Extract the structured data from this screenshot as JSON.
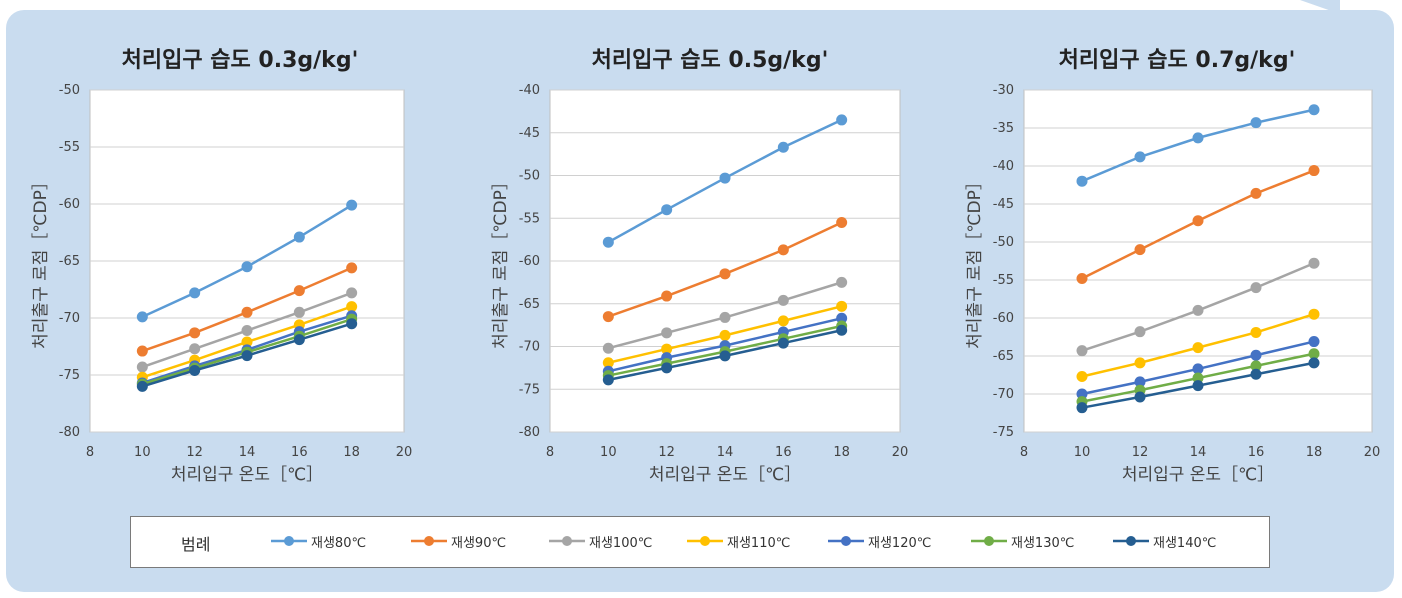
{
  "legend": {
    "title": "범례",
    "series": [
      {
        "name": "재생80℃",
        "color": "#5b9bd5"
      },
      {
        "name": "재생90℃",
        "color": "#ed7d31"
      },
      {
        "name": "재생100℃",
        "color": "#a5a5a5"
      },
      {
        "name": "재생110℃",
        "color": "#ffc000"
      },
      {
        "name": "재생120℃",
        "color": "#4472c4"
      },
      {
        "name": "재생130℃",
        "color": "#70ad47"
      },
      {
        "name": "재생140℃",
        "color": "#255e91"
      }
    ]
  },
  "chart_data": [
    {
      "type": "line",
      "title": "처리입구 습도   0.3g/kg'",
      "xlabel": "처리입구 온도［℃］",
      "ylabel": "처리출구 로점［℃DP］",
      "xlim": [
        8,
        20
      ],
      "xticks": [
        8,
        10,
        12,
        14,
        16,
        18,
        20
      ],
      "ylim": [
        -80,
        -50
      ],
      "yticks": [
        -50,
        -55,
        -60,
        -65,
        -70,
        -75,
        -80
      ],
      "grid": "horizontal",
      "x": [
        10,
        12,
        14,
        16,
        18
      ],
      "series": [
        {
          "name": "재생80℃",
          "values": [
            -69.9,
            -67.8,
            -65.5,
            -62.9,
            -60.1
          ]
        },
        {
          "name": "재생90℃",
          "values": [
            -72.9,
            -71.3,
            -69.5,
            -67.6,
            -65.6
          ]
        },
        {
          "name": "재생100℃",
          "values": [
            -74.3,
            -72.7,
            -71.1,
            -69.5,
            -67.8
          ]
        },
        {
          "name": "재생110℃",
          "values": [
            -75.2,
            -73.7,
            -72.1,
            -70.6,
            -69.0
          ]
        },
        {
          "name": "재생120℃",
          "values": [
            -75.7,
            -74.2,
            -72.8,
            -71.2,
            -69.8
          ]
        },
        {
          "name": "재생130℃",
          "values": [
            -75.8,
            -74.4,
            -73.0,
            -71.6,
            -70.1
          ]
        },
        {
          "name": "재생140℃",
          "values": [
            -76.0,
            -74.6,
            -73.3,
            -71.9,
            -70.5
          ]
        }
      ]
    },
    {
      "type": "line",
      "title": "처리입구 습도   0.5g/kg'",
      "xlabel": "처리입구 온도［℃］",
      "ylabel": "처리출구 로점［℃DP］",
      "xlim": [
        8,
        20
      ],
      "xticks": [
        8,
        10,
        12,
        14,
        16,
        18,
        20
      ],
      "ylim": [
        -80,
        -40
      ],
      "yticks": [
        -40,
        -45,
        -50,
        -55,
        -60,
        -65,
        -70,
        -75,
        -80
      ],
      "grid": "horizontal",
      "x": [
        10,
        12,
        14,
        16,
        18
      ],
      "series": [
        {
          "name": "재생80℃",
          "values": [
            -57.8,
            -54.0,
            -50.3,
            -46.7,
            -43.5
          ]
        },
        {
          "name": "재생90℃",
          "values": [
            -66.5,
            -64.1,
            -61.5,
            -58.7,
            -55.5
          ]
        },
        {
          "name": "재생100℃",
          "values": [
            -70.2,
            -68.4,
            -66.6,
            -64.6,
            -62.5
          ]
        },
        {
          "name": "재생110℃",
          "values": [
            -71.9,
            -70.3,
            -68.7,
            -67.0,
            -65.3
          ]
        },
        {
          "name": "재생120℃",
          "values": [
            -72.9,
            -71.3,
            -69.9,
            -68.3,
            -66.7
          ]
        },
        {
          "name": "재생130℃",
          "values": [
            -73.4,
            -72.0,
            -70.6,
            -69.1,
            -67.6
          ]
        },
        {
          "name": "재생140℃",
          "values": [
            -73.9,
            -72.5,
            -71.1,
            -69.6,
            -68.1
          ]
        }
      ]
    },
    {
      "type": "line",
      "title": "처리입구 습도   0.7g/kg'",
      "xlabel": "처리입구 온도［℃］",
      "ylabel": "처리출구 로점［℃DP］",
      "xlim": [
        8,
        20
      ],
      "xticks": [
        8,
        10,
        12,
        14,
        16,
        18,
        20
      ],
      "ylim": [
        -75,
        -30
      ],
      "yticks": [
        -30,
        -35,
        -40,
        -45,
        -50,
        -55,
        -60,
        -65,
        -70,
        -75
      ],
      "grid": "horizontal",
      "x": [
        10,
        12,
        14,
        16,
        18
      ],
      "series": [
        {
          "name": "재생80℃",
          "values": [
            -42.0,
            -38.8,
            -36.3,
            -34.3,
            -32.6
          ]
        },
        {
          "name": "재생90℃",
          "values": [
            -54.8,
            -51.0,
            -47.2,
            -43.6,
            -40.6
          ]
        },
        {
          "name": "재생100℃",
          "values": [
            -64.3,
            -61.8,
            -59.0,
            -56.0,
            -52.8
          ]
        },
        {
          "name": "재생110℃",
          "values": [
            -67.7,
            -65.9,
            -63.9,
            -61.9,
            -59.5
          ]
        },
        {
          "name": "재생120℃",
          "values": [
            -70.0,
            -68.4,
            -66.7,
            -64.9,
            -63.1
          ]
        },
        {
          "name": "재생130℃",
          "values": [
            -71.0,
            -69.5,
            -67.9,
            -66.3,
            -64.7
          ]
        },
        {
          "name": "재생140℃",
          "values": [
            -71.8,
            -70.4,
            -68.9,
            -67.4,
            -65.9
          ]
        }
      ]
    }
  ]
}
